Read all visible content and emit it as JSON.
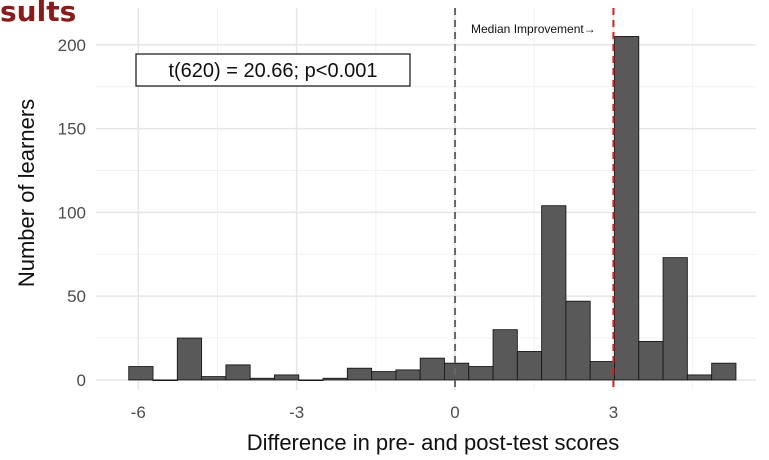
{
  "slide": {
    "heading": "sults"
  },
  "chart_data": {
    "type": "bar",
    "xlabel": "Difference in pre- and post-test scores",
    "ylabel": "Number of learners",
    "xlim": [
      -6.8,
      5.7
    ],
    "ylim": [
      -6,
      222
    ],
    "x_ticks": [
      -6,
      -3,
      0,
      3
    ],
    "x_tick_labels": [
      "-6",
      "-3",
      "0",
      "3"
    ],
    "y_ticks": [
      0,
      50,
      100,
      150,
      200
    ],
    "y_tick_labels": [
      "0",
      "50",
      "100",
      "150",
      "200"
    ],
    "bin_width": 0.46,
    "bins": [
      {
        "x": -5.95,
        "value": 8
      },
      {
        "x": -5.49,
        "value": 0
      },
      {
        "x": -5.03,
        "value": 25
      },
      {
        "x": -4.57,
        "value": 2
      },
      {
        "x": -4.11,
        "value": 9
      },
      {
        "x": -3.65,
        "value": 1
      },
      {
        "x": -3.19,
        "value": 3
      },
      {
        "x": -2.73,
        "value": 0
      },
      {
        "x": -2.27,
        "value": 1
      },
      {
        "x": -1.81,
        "value": 7
      },
      {
        "x": -1.35,
        "value": 5
      },
      {
        "x": -0.89,
        "value": 6
      },
      {
        "x": -0.43,
        "value": 13
      },
      {
        "x": 0.03,
        "value": 10
      },
      {
        "x": 0.49,
        "value": 8
      },
      {
        "x": 0.95,
        "value": 30
      },
      {
        "x": 1.41,
        "value": 17
      },
      {
        "x": 1.87,
        "value": 104
      },
      {
        "x": 2.33,
        "value": 47
      },
      {
        "x": 2.79,
        "value": 11
      },
      {
        "x": 3.25,
        "value": 205
      },
      {
        "x": 3.71,
        "value": 23
      },
      {
        "x": 4.17,
        "value": 73
      },
      {
        "x": 4.63,
        "value": 3
      },
      {
        "x": 5.09,
        "value": 10
      }
    ],
    "reference_lines": [
      {
        "x": 0,
        "color": "#666666",
        "style": "dashed"
      },
      {
        "x": 3,
        "color": "#d42020",
        "style": "dashed"
      }
    ],
    "annotations": {
      "median_label": "Median Improvement→",
      "stat_box": "t(620) = 20.66; p<0.001"
    },
    "bar_fill": "#595959",
    "bar_stroke": "#1a1a1a",
    "grid": true
  }
}
